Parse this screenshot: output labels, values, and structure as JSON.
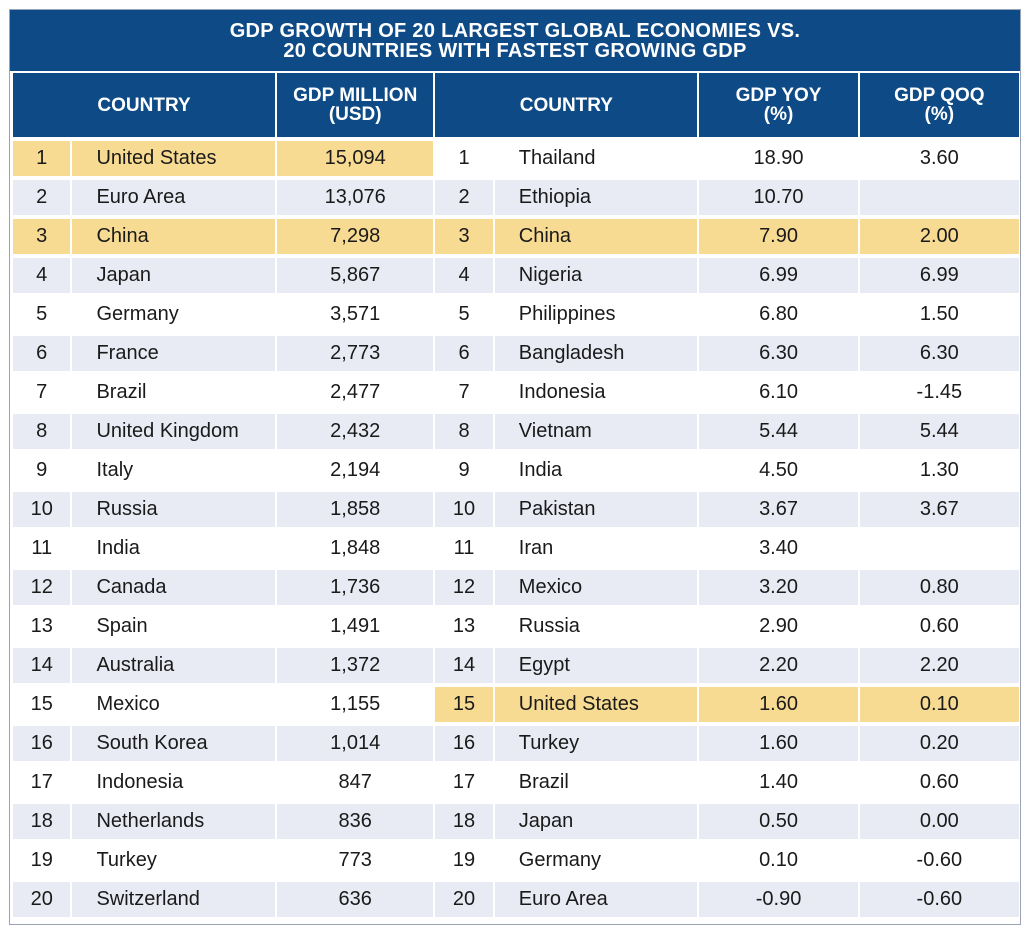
{
  "title_line1": "GDP GROWTH OF 20 LARGEST GLOBAL ECONOMIES VS.",
  "title_line2": "20 COUNTRIES WITH FASTEST GROWING GDP",
  "headers": {
    "country_left": "COUNTRY",
    "gdp_million_l1": "GDP MILLION",
    "gdp_million_l2": "(USD)",
    "country_right": "COUNTRY",
    "gdp_yoy_l1": "GDP YOY",
    "gdp_yoy_l2": "(%)",
    "gdp_qoq_l1": "GDP QOQ",
    "gdp_qoq_l2": "(%)"
  },
  "colors": {
    "header_bg": "#0d4a86",
    "highlight": "#f8db92",
    "stripe": "#e8ebf3"
  },
  "chart_data": {
    "type": "table",
    "title": "GDP GROWTH OF 20 LARGEST GLOBAL ECONOMIES VS. 20 COUNTRIES WITH FASTEST GROWING GDP",
    "left_table": {
      "columns": [
        "",
        "COUNTRY",
        "GDP MILLION (USD)"
      ],
      "rows": [
        {
          "rank": "1",
          "country": "United States",
          "gdp": "15,094",
          "highlight": true
        },
        {
          "rank": "2",
          "country": "Euro Area",
          "gdp": "13,076",
          "highlight": false
        },
        {
          "rank": "3",
          "country": "China",
          "gdp": "7,298",
          "highlight": true
        },
        {
          "rank": "4",
          "country": "Japan",
          "gdp": "5,867",
          "highlight": false
        },
        {
          "rank": "5",
          "country": "Germany",
          "gdp": "3,571",
          "highlight": false
        },
        {
          "rank": "6",
          "country": "France",
          "gdp": "2,773",
          "highlight": false
        },
        {
          "rank": "7",
          "country": "Brazil",
          "gdp": "2,477",
          "highlight": false
        },
        {
          "rank": "8",
          "country": "United Kingdom",
          "gdp": "2,432",
          "highlight": false
        },
        {
          "rank": "9",
          "country": "Italy",
          "gdp": "2,194",
          "highlight": false
        },
        {
          "rank": "10",
          "country": "Russia",
          "gdp": "1,858",
          "highlight": false
        },
        {
          "rank": "11",
          "country": "India",
          "gdp": "1,848",
          "highlight": false
        },
        {
          "rank": "12",
          "country": "Canada",
          "gdp": "1,736",
          "highlight": false
        },
        {
          "rank": "13",
          "country": "Spain",
          "gdp": "1,491",
          "highlight": false
        },
        {
          "rank": "14",
          "country": "Australia",
          "gdp": "1,372",
          "highlight": false
        },
        {
          "rank": "15",
          "country": "Mexico",
          "gdp": "1,155",
          "highlight": false
        },
        {
          "rank": "16",
          "country": "South Korea",
          "gdp": "1,014",
          "highlight": false
        },
        {
          "rank": "17",
          "country": "Indonesia",
          "gdp": "847",
          "highlight": false
        },
        {
          "rank": "18",
          "country": "Netherlands",
          "gdp": "836",
          "highlight": false
        },
        {
          "rank": "19",
          "country": "Turkey",
          "gdp": "773",
          "highlight": false
        },
        {
          "rank": "20",
          "country": "Switzerland",
          "gdp": "636",
          "highlight": false
        }
      ]
    },
    "right_table": {
      "columns": [
        "",
        "COUNTRY",
        "GDP YOY (%)",
        "GDP QOQ (%)"
      ],
      "rows": [
        {
          "rank": "1",
          "country": "Thailand",
          "yoy": "18.90",
          "qoq": "3.60",
          "highlight": false
        },
        {
          "rank": "2",
          "country": "Ethiopia",
          "yoy": "10.70",
          "qoq": "",
          "highlight": false
        },
        {
          "rank": "3",
          "country": "China",
          "yoy": "7.90",
          "qoq": "2.00",
          "highlight": true
        },
        {
          "rank": "4",
          "country": "Nigeria",
          "yoy": "6.99",
          "qoq": "6.99",
          "highlight": false
        },
        {
          "rank": "5",
          "country": "Philippines",
          "yoy": "6.80",
          "qoq": "1.50",
          "highlight": false
        },
        {
          "rank": "6",
          "country": "Bangladesh",
          "yoy": "6.30",
          "qoq": "6.30",
          "highlight": false
        },
        {
          "rank": "7",
          "country": "Indonesia",
          "yoy": "6.10",
          "qoq": "-1.45",
          "highlight": false
        },
        {
          "rank": "8",
          "country": "Vietnam",
          "yoy": "5.44",
          "qoq": "5.44",
          "highlight": false
        },
        {
          "rank": "9",
          "country": "India",
          "yoy": "4.50",
          "qoq": "1.30",
          "highlight": false
        },
        {
          "rank": "10",
          "country": "Pakistan",
          "yoy": "3.67",
          "qoq": "3.67",
          "highlight": false
        },
        {
          "rank": "11",
          "country": "Iran",
          "yoy": "3.40",
          "qoq": "",
          "highlight": false
        },
        {
          "rank": "12",
          "country": "Mexico",
          "yoy": "3.20",
          "qoq": "0.80",
          "highlight": false
        },
        {
          "rank": "13",
          "country": "Russia",
          "yoy": "2.90",
          "qoq": "0.60",
          "highlight": false
        },
        {
          "rank": "14",
          "country": "Egypt",
          "yoy": "2.20",
          "qoq": "2.20",
          "highlight": false
        },
        {
          "rank": "15",
          "country": "United States",
          "yoy": "1.60",
          "qoq": "0.10",
          "highlight": true
        },
        {
          "rank": "16",
          "country": "Turkey",
          "yoy": "1.60",
          "qoq": "0.20",
          "highlight": false
        },
        {
          "rank": "17",
          "country": "Brazil",
          "yoy": "1.40",
          "qoq": "0.60",
          "highlight": false
        },
        {
          "rank": "18",
          "country": "Japan",
          "yoy": "0.50",
          "qoq": "0.00",
          "highlight": false
        },
        {
          "rank": "19",
          "country": "Germany",
          "yoy": "0.10",
          "qoq": "-0.60",
          "highlight": false
        },
        {
          "rank": "20",
          "country": "Euro Area",
          "yoy": "-0.90",
          "qoq": "-0.60",
          "highlight": false
        }
      ]
    }
  }
}
